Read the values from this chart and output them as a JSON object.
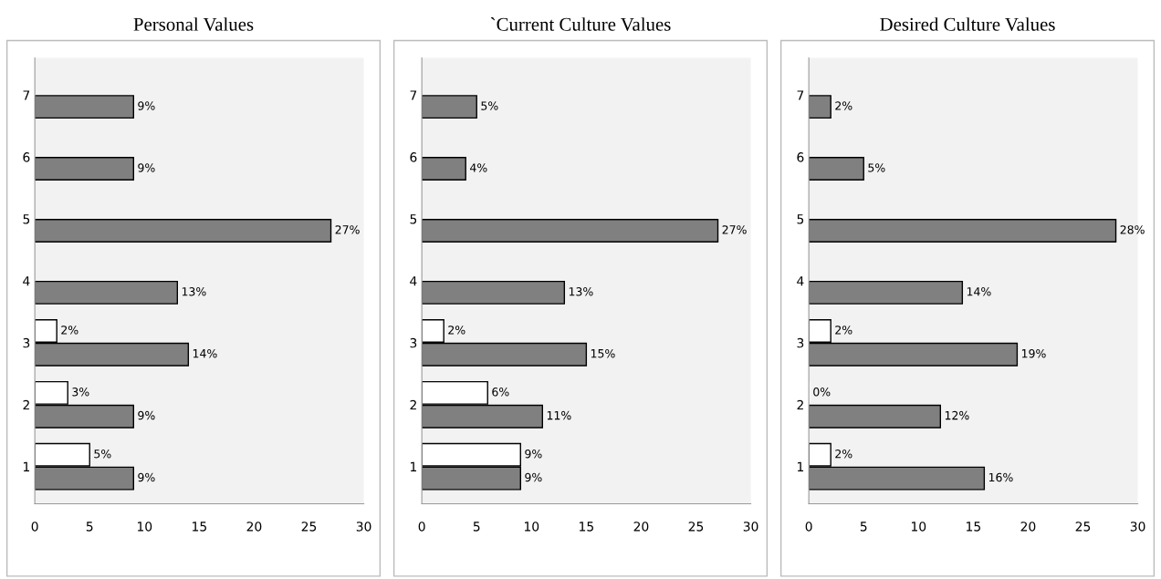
{
  "chart_data": [
    {
      "type": "bar",
      "orientation": "horizontal",
      "title": "Personal Values",
      "categories": [
        "7",
        "6",
        "5",
        "4",
        "3",
        "2",
        "1"
      ],
      "xlim": [
        0,
        30
      ],
      "xticks": [
        0,
        5,
        10,
        15,
        20,
        25,
        30
      ],
      "grid": false,
      "series": [
        {
          "color": "#ffffff",
          "values": [
            null,
            null,
            null,
            null,
            2,
            3,
            5
          ],
          "value_labels": [
            null,
            null,
            null,
            null,
            "2%",
            "3%",
            "5%"
          ]
        },
        {
          "color": "#808080",
          "values": [
            9,
            9,
            27,
            13,
            14,
            9,
            9
          ],
          "value_labels": [
            "9%",
            "9%",
            "27%",
            "13%",
            "14%",
            "9%",
            "9%"
          ]
        }
      ]
    },
    {
      "type": "bar",
      "orientation": "horizontal",
      "title": "`Current Culture Values",
      "categories": [
        "7",
        "6",
        "5",
        "4",
        "3",
        "2",
        "1"
      ],
      "xlim": [
        0,
        30
      ],
      "xticks": [
        0,
        5,
        10,
        15,
        20,
        25,
        30
      ],
      "grid": false,
      "series": [
        {
          "color": "#ffffff",
          "values": [
            null,
            null,
            null,
            null,
            2,
            6,
            9
          ],
          "value_labels": [
            null,
            null,
            null,
            null,
            "2%",
            "6%",
            "9%"
          ]
        },
        {
          "color": "#808080",
          "values": [
            5,
            4,
            27,
            13,
            15,
            11,
            9
          ],
          "value_labels": [
            "5%",
            "4%",
            "27%",
            "13%",
            "15%",
            "11%",
            "9%"
          ]
        }
      ]
    },
    {
      "type": "bar",
      "orientation": "horizontal",
      "title": "Desired Culture Values",
      "categories": [
        "7",
        "6",
        "5",
        "4",
        "3",
        "2",
        "1"
      ],
      "xlim": [
        0,
        30
      ],
      "xticks": [
        0,
        5,
        10,
        15,
        20,
        25,
        30
      ],
      "grid": false,
      "series": [
        {
          "color": "#ffffff",
          "values": [
            null,
            null,
            null,
            null,
            2,
            0,
            2
          ],
          "value_labels": [
            null,
            null,
            null,
            null,
            "2%",
            "0%",
            "2%"
          ]
        },
        {
          "color": "#808080",
          "values": [
            2,
            5,
            28,
            14,
            19,
            12,
            16
          ],
          "value_labels": [
            "2%",
            "5%",
            "28%",
            "14%",
            "19%",
            "12%",
            "16%"
          ]
        }
      ]
    }
  ]
}
